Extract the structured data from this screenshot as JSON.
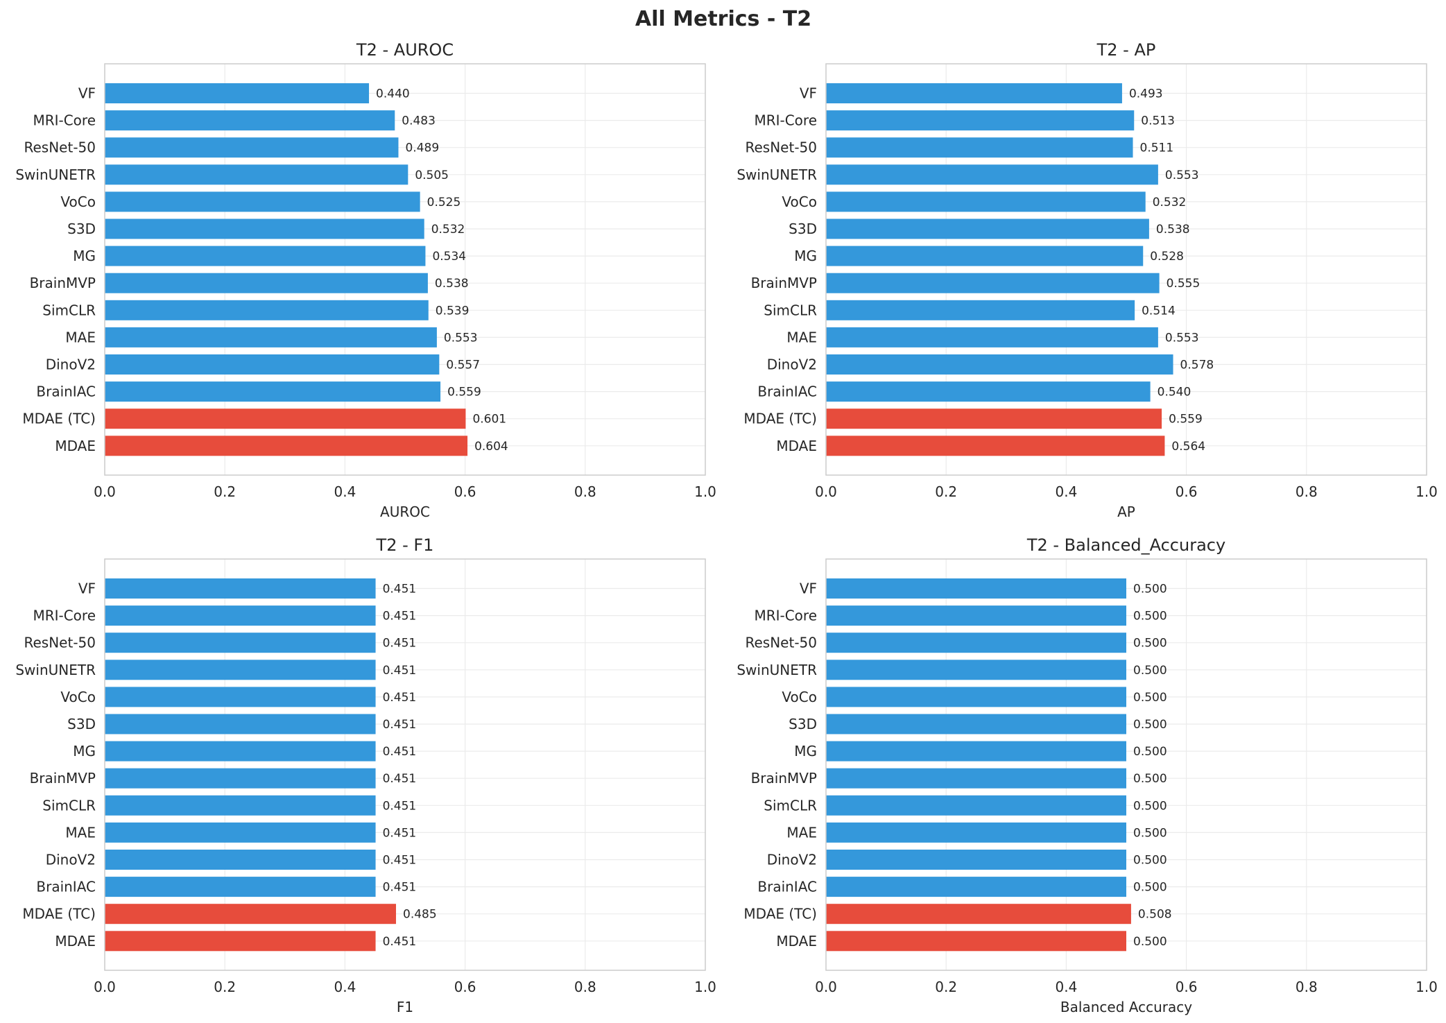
{
  "figure_title": "All Metrics - T2",
  "colors": {
    "default": "#3498db",
    "highlight": "#e74c3c",
    "grid": "#ebebeb",
    "spine": "#cccccc"
  },
  "chart_data": [
    {
      "type": "bar",
      "orientation": "horizontal",
      "title": "T2 - AUROC",
      "xlabel": "AUROC",
      "xlim": [
        0,
        1
      ],
      "xticks": [
        "0.0",
        "0.2",
        "0.4",
        "0.6",
        "0.8",
        "1.0"
      ],
      "grid": true,
      "categories": [
        "VF",
        "MRI-Core",
        "ResNet-50",
        "SwinUNETR",
        "VoCo",
        "S3D",
        "MG",
        "BrainMVP",
        "SimCLR",
        "MAE",
        "DinoV2",
        "BrainIAC",
        "MDAE (TC)",
        "MDAE"
      ],
      "values": [
        0.44,
        0.483,
        0.489,
        0.505,
        0.525,
        0.532,
        0.534,
        0.538,
        0.539,
        0.553,
        0.557,
        0.559,
        0.601,
        0.604
      ],
      "value_labels": [
        "0.440",
        "0.483",
        "0.489",
        "0.505",
        "0.525",
        "0.532",
        "0.534",
        "0.538",
        "0.539",
        "0.553",
        "0.557",
        "0.559",
        "0.601",
        "0.604"
      ],
      "highlighted": [
        "MDAE (TC)",
        "MDAE"
      ]
    },
    {
      "type": "bar",
      "orientation": "horizontal",
      "title": "T2 - AP",
      "xlabel": "AP",
      "xlim": [
        0,
        1
      ],
      "xticks": [
        "0.0",
        "0.2",
        "0.4",
        "0.6",
        "0.8",
        "1.0"
      ],
      "grid": true,
      "categories": [
        "VF",
        "MRI-Core",
        "ResNet-50",
        "SwinUNETR",
        "VoCo",
        "S3D",
        "MG",
        "BrainMVP",
        "SimCLR",
        "MAE",
        "DinoV2",
        "BrainIAC",
        "MDAE (TC)",
        "MDAE"
      ],
      "values": [
        0.493,
        0.513,
        0.511,
        0.553,
        0.532,
        0.538,
        0.528,
        0.555,
        0.514,
        0.553,
        0.578,
        0.54,
        0.559,
        0.564
      ],
      "value_labels": [
        "0.493",
        "0.513",
        "0.511",
        "0.553",
        "0.532",
        "0.538",
        "0.528",
        "0.555",
        "0.514",
        "0.553",
        "0.578",
        "0.540",
        "0.559",
        "0.564"
      ],
      "highlighted": [
        "MDAE (TC)",
        "MDAE"
      ]
    },
    {
      "type": "bar",
      "orientation": "horizontal",
      "title": "T2 - F1",
      "xlabel": "F1",
      "xlim": [
        0,
        1
      ],
      "xticks": [
        "0.0",
        "0.2",
        "0.4",
        "0.6",
        "0.8",
        "1.0"
      ],
      "grid": true,
      "categories": [
        "VF",
        "MRI-Core",
        "ResNet-50",
        "SwinUNETR",
        "VoCo",
        "S3D",
        "MG",
        "BrainMVP",
        "SimCLR",
        "MAE",
        "DinoV2",
        "BrainIAC",
        "MDAE (TC)",
        "MDAE"
      ],
      "values": [
        0.451,
        0.451,
        0.451,
        0.451,
        0.451,
        0.451,
        0.451,
        0.451,
        0.451,
        0.451,
        0.451,
        0.451,
        0.485,
        0.451
      ],
      "value_labels": [
        "0.451",
        "0.451",
        "0.451",
        "0.451",
        "0.451",
        "0.451",
        "0.451",
        "0.451",
        "0.451",
        "0.451",
        "0.451",
        "0.451",
        "0.485",
        "0.451"
      ],
      "highlighted": [
        "MDAE (TC)",
        "MDAE"
      ]
    },
    {
      "type": "bar",
      "orientation": "horizontal",
      "title": "T2 - Balanced_Accuracy",
      "xlabel": "Balanced Accuracy",
      "xlim": [
        0,
        1
      ],
      "xticks": [
        "0.0",
        "0.2",
        "0.4",
        "0.6",
        "0.8",
        "1.0"
      ],
      "grid": true,
      "categories": [
        "VF",
        "MRI-Core",
        "ResNet-50",
        "SwinUNETR",
        "VoCo",
        "S3D",
        "MG",
        "BrainMVP",
        "SimCLR",
        "MAE",
        "DinoV2",
        "BrainIAC",
        "MDAE (TC)",
        "MDAE"
      ],
      "values": [
        0.5,
        0.5,
        0.5,
        0.5,
        0.5,
        0.5,
        0.5,
        0.5,
        0.5,
        0.5,
        0.5,
        0.5,
        0.508,
        0.5
      ],
      "value_labels": [
        "0.500",
        "0.500",
        "0.500",
        "0.500",
        "0.500",
        "0.500",
        "0.500",
        "0.500",
        "0.500",
        "0.500",
        "0.500",
        "0.500",
        "0.508",
        "0.500"
      ],
      "highlighted": [
        "MDAE (TC)",
        "MDAE"
      ]
    }
  ]
}
